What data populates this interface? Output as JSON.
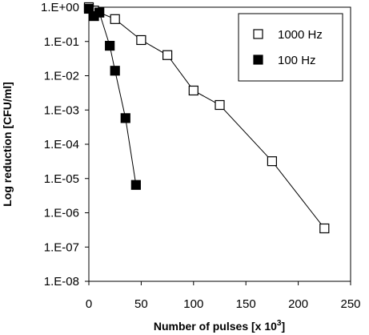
{
  "chart_data": {
    "type": "scatter",
    "title": "",
    "xlabel": "Number of pulses [x 10",
    "xlabel_sup": "3",
    "xlabel_end": "]",
    "ylabel": "Log reduction [CFU/ml]",
    "xlim": [
      0,
      250
    ],
    "ylim": [
      1e-08,
      1
    ],
    "yscale": "log",
    "grid": false,
    "legend_position": "top-right",
    "x_ticks": [
      "0",
      "50",
      "100",
      "150",
      "200",
      "250"
    ],
    "x_tick_values": [
      0,
      50,
      100,
      150,
      200,
      250
    ],
    "y_ticks": [
      "1.E+00",
      "1.E-01",
      "1.E-02",
      "1.E-03",
      "1.E-04",
      "1.E-05",
      "1.E-06",
      "1.E-07",
      "1.E-08"
    ],
    "y_tick_values": [
      1,
      0.1,
      0.01,
      0.001,
      0.0001,
      1e-05,
      1e-06,
      1e-07,
      1e-08
    ],
    "series": [
      {
        "name": "1000 Hz",
        "marker": "open-square",
        "color": "#000000",
        "x": [
          0,
          5,
          10,
          25,
          50,
          75,
          100,
          125,
          175,
          225
        ],
        "y": [
          1.0,
          0.8,
          0.7,
          0.45,
          0.11,
          0.04,
          0.0037,
          0.0014,
          3.2e-05,
          3.5e-07
        ]
      },
      {
        "name": "100 Hz",
        "marker": "filled-square",
        "color": "#000000",
        "x": [
          0,
          5,
          10,
          20,
          25,
          35,
          45
        ],
        "y": [
          0.9,
          0.55,
          0.7,
          0.075,
          0.014,
          0.00058,
          6.5e-06
        ]
      }
    ]
  }
}
